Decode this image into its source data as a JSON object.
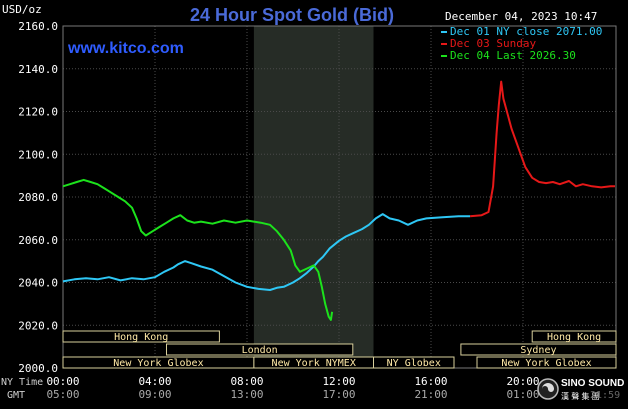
{
  "chart_data": {
    "type": "line",
    "title": "24 Hour Spot Gold (Bid)",
    "website": "www.kitco.com",
    "timestamp": "December 04, 2023 10:47",
    "ylabel": "USD/oz",
    "ylim": [
      2000.0,
      2160.0
    ],
    "yticks": [
      "2000.0",
      "2020.0",
      "2040.0",
      "2060.0",
      "2080.0",
      "2100.0",
      "2120.0",
      "2140.0",
      "2160.0"
    ],
    "xlim": [
      0,
      24
    ],
    "xticks": [
      {
        "t": 0,
        "ny": "00:00",
        "gmt": "05:00"
      },
      {
        "t": 4,
        "ny": "04:00",
        "gmt": "09:00"
      },
      {
        "t": 8,
        "ny": "08:00",
        "gmt": "13:00"
      },
      {
        "t": 12,
        "ny": "12:00",
        "gmt": "17:00"
      },
      {
        "t": 16,
        "ny": "16:00",
        "gmt": "21:00"
      },
      {
        "t": 20,
        "ny": "20:00",
        "gmt": "01:00"
      }
    ],
    "x_row_labels": {
      "ny": "NY Time",
      "gmt": "GMT"
    },
    "grid": true,
    "legend_position": "top-right",
    "highlight_band": [
      8.3,
      13.5
    ],
    "series": [
      {
        "name": "Dec 01 NY close 2071.00",
        "color": "#2ec7f5",
        "points": [
          [
            0,
            2040.5
          ],
          [
            0.5,
            2041.5
          ],
          [
            1,
            2042
          ],
          [
            1.5,
            2041.5
          ],
          [
            2,
            2042.5
          ],
          [
            2.5,
            2041
          ],
          [
            3,
            2042
          ],
          [
            3.5,
            2041.5
          ],
          [
            4,
            2042.5
          ],
          [
            4.4,
            2045
          ],
          [
            4.8,
            2047
          ],
          [
            5,
            2048.5
          ],
          [
            5.3,
            2050
          ],
          [
            5.6,
            2049
          ],
          [
            6,
            2047.5
          ],
          [
            6.5,
            2046
          ],
          [
            7,
            2043
          ],
          [
            7.5,
            2040
          ],
          [
            8,
            2038
          ],
          [
            8.5,
            2037
          ],
          [
            9,
            2036.5
          ],
          [
            9.3,
            2037.5
          ],
          [
            9.6,
            2038
          ],
          [
            10,
            2040
          ],
          [
            10.3,
            2042
          ],
          [
            10.6,
            2044.5
          ],
          [
            10.9,
            2047.5
          ],
          [
            11.1,
            2050
          ],
          [
            11.3,
            2052
          ],
          [
            11.6,
            2056
          ],
          [
            12,
            2059.5
          ],
          [
            12.3,
            2061.5
          ],
          [
            12.6,
            2063
          ],
          [
            13,
            2065
          ],
          [
            13.3,
            2067
          ],
          [
            13.6,
            2070
          ],
          [
            13.9,
            2072
          ],
          [
            14.2,
            2070
          ],
          [
            14.6,
            2069
          ],
          [
            15,
            2067
          ],
          [
            15.4,
            2069
          ],
          [
            15.8,
            2070
          ],
          [
            16.5,
            2070.5
          ],
          [
            17.2,
            2071
          ],
          [
            17.7,
            2071
          ]
        ]
      },
      {
        "name": "Dec 03 Sunday",
        "color": "#e61818",
        "points": [
          [
            17.7,
            2071
          ],
          [
            18.2,
            2071.5
          ],
          [
            18.5,
            2073
          ],
          [
            18.7,
            2085
          ],
          [
            18.85,
            2110
          ],
          [
            18.95,
            2123
          ],
          [
            19.05,
            2134
          ],
          [
            19.15,
            2126
          ],
          [
            19.3,
            2120
          ],
          [
            19.5,
            2112
          ],
          [
            19.8,
            2103
          ],
          [
            20.1,
            2094
          ],
          [
            20.4,
            2089
          ],
          [
            20.7,
            2087
          ],
          [
            21,
            2086.5
          ],
          [
            21.3,
            2087
          ],
          [
            21.6,
            2086
          ],
          [
            22,
            2087.5
          ],
          [
            22.3,
            2085
          ],
          [
            22.6,
            2086
          ],
          [
            23,
            2085
          ],
          [
            23.4,
            2084.5
          ],
          [
            23.8,
            2085
          ],
          [
            24,
            2085
          ]
        ]
      },
      {
        "name": "Dec 04 Last 2026.30",
        "color": "#1ce21c",
        "points": [
          [
            0,
            2085
          ],
          [
            0.3,
            2086
          ],
          [
            0.6,
            2087
          ],
          [
            0.9,
            2088
          ],
          [
            1.2,
            2087
          ],
          [
            1.5,
            2086
          ],
          [
            1.8,
            2084
          ],
          [
            2.1,
            2082
          ],
          [
            2.4,
            2080
          ],
          [
            2.7,
            2078
          ],
          [
            3,
            2075
          ],
          [
            3.2,
            2070
          ],
          [
            3.4,
            2064
          ],
          [
            3.6,
            2062
          ],
          [
            3.9,
            2064
          ],
          [
            4.2,
            2066
          ],
          [
            4.5,
            2068
          ],
          [
            4.8,
            2070
          ],
          [
            5.1,
            2071.5
          ],
          [
            5.4,
            2069
          ],
          [
            5.7,
            2068
          ],
          [
            6,
            2068.5
          ],
          [
            6.5,
            2067.5
          ],
          [
            7,
            2069
          ],
          [
            7.5,
            2068
          ],
          [
            8,
            2069
          ],
          [
            8.3,
            2068.5
          ],
          [
            8.6,
            2068
          ],
          [
            9,
            2067
          ],
          [
            9.3,
            2064
          ],
          [
            9.6,
            2060
          ],
          [
            9.9,
            2055
          ],
          [
            10.1,
            2048
          ],
          [
            10.3,
            2045
          ],
          [
            10.6,
            2046.5
          ],
          [
            10.9,
            2048
          ],
          [
            11.1,
            2045
          ],
          [
            11.25,
            2038
          ],
          [
            11.4,
            2030
          ],
          [
            11.55,
            2024
          ],
          [
            11.65,
            2022.5
          ],
          [
            11.7,
            2026.3
          ]
        ]
      }
    ]
  },
  "sessions": [
    {
      "label": "Hong Kong",
      "t0": 0,
      "t1": 6.8,
      "row": 0
    },
    {
      "label": "Hong Kong",
      "t0": 20.4,
      "t1": 24.4,
      "row": 0
    },
    {
      "label": "London",
      "t0": 4.5,
      "t1": 12.6,
      "row": 1
    },
    {
      "label": "Sydney",
      "t0": 17.3,
      "t1": 24.4,
      "row": 1
    },
    {
      "label": "New York Globex",
      "t0": 0,
      "t1": 8.3,
      "row": 2
    },
    {
      "label": "New York NYMEX",
      "t0": 8.3,
      "t1": 13.5,
      "row": 2
    },
    {
      "label": "NY Globex",
      "t0": 13.5,
      "t1": 17.0,
      "row": 2
    },
    {
      "label": "New York Globex",
      "t0": 18.0,
      "t1": 24.4,
      "row": 2
    }
  ],
  "watermark": {
    "text": "SINO SOUND",
    "subtext": "漢 聲 集 團",
    "partial_time": "21:59"
  }
}
